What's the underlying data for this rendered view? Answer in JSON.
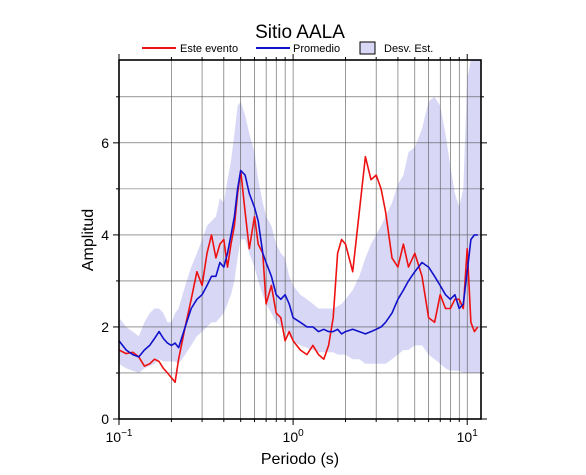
{
  "chart_data": {
    "type": "line",
    "title": "Sitio AALA",
    "xlabel": "Periodo (s)",
    "ylabel": "Amplitud",
    "xscale": "log",
    "xlim": [
      0.1,
      12
    ],
    "ylim": [
      0,
      7.8
    ],
    "grid": true,
    "legend_position": "top",
    "x_ticks": [
      0.1,
      1,
      10
    ],
    "x_tick_labels": [
      {
        "base": "10",
        "exp": "−1"
      },
      {
        "base": "10",
        "exp": "0"
      },
      {
        "base": "10",
        "exp": "1"
      }
    ],
    "y_ticks": [
      0,
      2,
      4,
      6
    ],
    "y_tick_labels": [
      "0",
      "2",
      "4",
      "6"
    ],
    "legend": [
      {
        "label": "Este evento",
        "kind": "line",
        "color": "#ee1111"
      },
      {
        "label": "Promedio",
        "kind": "line",
        "color": "#1111cc"
      },
      {
        "label": "Desv. Est.",
        "kind": "band",
        "color": "#d8d8f6"
      }
    ],
    "series": [
      {
        "name": "Este evento",
        "color": "#ee1111",
        "x": [
          0.1,
          0.11,
          0.12,
          0.13,
          0.14,
          0.15,
          0.16,
          0.17,
          0.18,
          0.19,
          0.2,
          0.21,
          0.22,
          0.24,
          0.26,
          0.28,
          0.3,
          0.32,
          0.34,
          0.36,
          0.38,
          0.4,
          0.42,
          0.44,
          0.46,
          0.48,
          0.5,
          0.53,
          0.56,
          0.6,
          0.63,
          0.67,
          0.7,
          0.75,
          0.8,
          0.85,
          0.9,
          0.95,
          1.0,
          1.1,
          1.2,
          1.3,
          1.4,
          1.5,
          1.6,
          1.7,
          1.8,
          1.9,
          2.0,
          2.2,
          2.4,
          2.6,
          2.8,
          3.0,
          3.2,
          3.4,
          3.7,
          4.0,
          4.3,
          4.6,
          5.0,
          5.5,
          6.0,
          6.5,
          7.0,
          7.5,
          8.0,
          8.5,
          9.0,
          9.5,
          10.0,
          10.5,
          11.0,
          11.5
        ],
        "values": [
          1.5,
          1.42,
          1.45,
          1.35,
          1.15,
          1.2,
          1.3,
          1.25,
          1.1,
          1.0,
          0.9,
          0.8,
          1.3,
          2.0,
          2.6,
          3.2,
          2.9,
          3.6,
          4.0,
          3.5,
          3.8,
          3.9,
          3.3,
          3.8,
          4.2,
          4.9,
          5.4,
          4.5,
          3.7,
          4.4,
          3.8,
          3.6,
          2.5,
          2.9,
          2.3,
          2.2,
          1.7,
          1.9,
          1.7,
          1.5,
          1.4,
          1.6,
          1.4,
          1.3,
          1.6,
          2.2,
          3.6,
          3.9,
          3.8,
          3.2,
          4.5,
          5.7,
          5.2,
          5.3,
          5.0,
          4.5,
          3.5,
          3.3,
          3.8,
          3.3,
          3.6,
          3.1,
          2.2,
          2.1,
          2.7,
          2.4,
          2.4,
          2.6,
          2.6,
          2.4,
          3.7,
          2.1,
          1.9,
          2.0
        ]
      },
      {
        "name": "Promedio",
        "color": "#1111cc",
        "x": [
          0.1,
          0.11,
          0.12,
          0.13,
          0.14,
          0.15,
          0.16,
          0.17,
          0.18,
          0.19,
          0.2,
          0.21,
          0.22,
          0.24,
          0.26,
          0.28,
          0.3,
          0.32,
          0.34,
          0.36,
          0.38,
          0.4,
          0.42,
          0.44,
          0.46,
          0.48,
          0.5,
          0.53,
          0.56,
          0.6,
          0.63,
          0.67,
          0.7,
          0.75,
          0.8,
          0.85,
          0.9,
          0.95,
          1.0,
          1.1,
          1.2,
          1.3,
          1.4,
          1.5,
          1.6,
          1.7,
          1.8,
          1.9,
          2.0,
          2.2,
          2.4,
          2.6,
          2.8,
          3.0,
          3.2,
          3.4,
          3.7,
          4.0,
          4.3,
          4.6,
          5.0,
          5.5,
          6.0,
          6.5,
          7.0,
          7.5,
          8.0,
          8.5,
          9.0,
          9.5,
          10.0,
          10.5,
          11.0,
          11.5
        ],
        "values": [
          1.7,
          1.5,
          1.4,
          1.35,
          1.5,
          1.6,
          1.75,
          1.9,
          1.75,
          1.65,
          1.6,
          1.65,
          1.55,
          2.0,
          2.4,
          2.6,
          2.7,
          2.9,
          3.1,
          3.1,
          3.4,
          3.3,
          3.6,
          4.0,
          4.4,
          5.0,
          5.4,
          5.3,
          4.9,
          4.6,
          4.3,
          3.6,
          3.4,
          3.1,
          2.7,
          2.6,
          2.7,
          2.5,
          2.2,
          2.1,
          2.0,
          2.0,
          1.9,
          1.95,
          1.9,
          1.9,
          1.95,
          1.85,
          1.9,
          1.95,
          1.9,
          1.85,
          1.9,
          1.95,
          2.0,
          2.1,
          2.3,
          2.6,
          2.8,
          3.0,
          3.2,
          3.4,
          3.3,
          3.1,
          2.9,
          2.7,
          2.6,
          2.7,
          2.4,
          2.5,
          3.2,
          3.9,
          4.0,
          4.0
        ]
      }
    ],
    "band": {
      "name": "Desv. Est.",
      "color": "#d8d8f6",
      "x": [
        0.1,
        0.11,
        0.12,
        0.13,
        0.14,
        0.15,
        0.16,
        0.17,
        0.18,
        0.19,
        0.2,
        0.21,
        0.22,
        0.24,
        0.26,
        0.28,
        0.3,
        0.32,
        0.34,
        0.36,
        0.38,
        0.4,
        0.42,
        0.44,
        0.46,
        0.48,
        0.5,
        0.53,
        0.56,
        0.6,
        0.63,
        0.67,
        0.7,
        0.75,
        0.8,
        0.85,
        0.9,
        0.95,
        1.0,
        1.1,
        1.2,
        1.3,
        1.4,
        1.5,
        1.6,
        1.7,
        1.8,
        1.9,
        2.0,
        2.2,
        2.4,
        2.6,
        2.8,
        3.0,
        3.2,
        3.4,
        3.7,
        4.0,
        4.3,
        4.6,
        5.0,
        5.5,
        6.0,
        6.5,
        7.0,
        7.5,
        8.0,
        8.5,
        9.0,
        9.5,
        10.0,
        10.5,
        11.0,
        11.5,
        12.0
      ],
      "upper": [
        2.2,
        2.0,
        1.9,
        1.8,
        2.1,
        2.3,
        2.4,
        2.4,
        2.3,
        2.1,
        2.1,
        2.3,
        2.4,
        2.9,
        3.3,
        3.6,
        3.9,
        4.2,
        4.3,
        4.4,
        4.8,
        4.7,
        5.2,
        5.6,
        6.2,
        6.8,
        6.9,
        6.6,
        6.2,
        5.8,
        5.2,
        4.7,
        4.4,
        4.2,
        3.8,
        3.6,
        3.5,
        3.1,
        2.9,
        2.7,
        2.6,
        2.5,
        2.4,
        2.4,
        2.4,
        2.4,
        2.45,
        2.5,
        2.6,
        2.8,
        3.1,
        3.5,
        3.8,
        4.0,
        4.2,
        4.4,
        4.7,
        5.1,
        5.3,
        5.8,
        5.9,
        6.3,
        6.9,
        7.0,
        6.8,
        6.2,
        5.5,
        4.9,
        4.6,
        5.0,
        7.4,
        7.8,
        7.8,
        7.8,
        7.8
      ],
      "lower": [
        1.2,
        1.1,
        1.05,
        1.0,
        1.1,
        1.15,
        1.2,
        1.3,
        1.25,
        1.25,
        1.25,
        1.25,
        1.2,
        1.4,
        1.6,
        1.8,
        1.9,
        2.0,
        2.1,
        2.1,
        2.2,
        2.3,
        2.5,
        2.7,
        3.0,
        3.5,
        3.9,
        3.9,
        3.6,
        3.3,
        3.0,
        2.7,
        2.5,
        2.3,
        2.1,
        2.0,
        1.95,
        1.8,
        1.7,
        1.6,
        1.55,
        1.5,
        1.45,
        1.45,
        1.45,
        1.45,
        1.4,
        1.4,
        1.4,
        1.3,
        1.3,
        1.2,
        1.2,
        1.2,
        1.2,
        1.2,
        1.3,
        1.4,
        1.5,
        1.5,
        1.6,
        1.6,
        1.4,
        1.3,
        1.2,
        1.1,
        1.05,
        1.05,
        1.05,
        1.0,
        1.0,
        1.0,
        1.0,
        1.0,
        1.0
      ]
    }
  }
}
